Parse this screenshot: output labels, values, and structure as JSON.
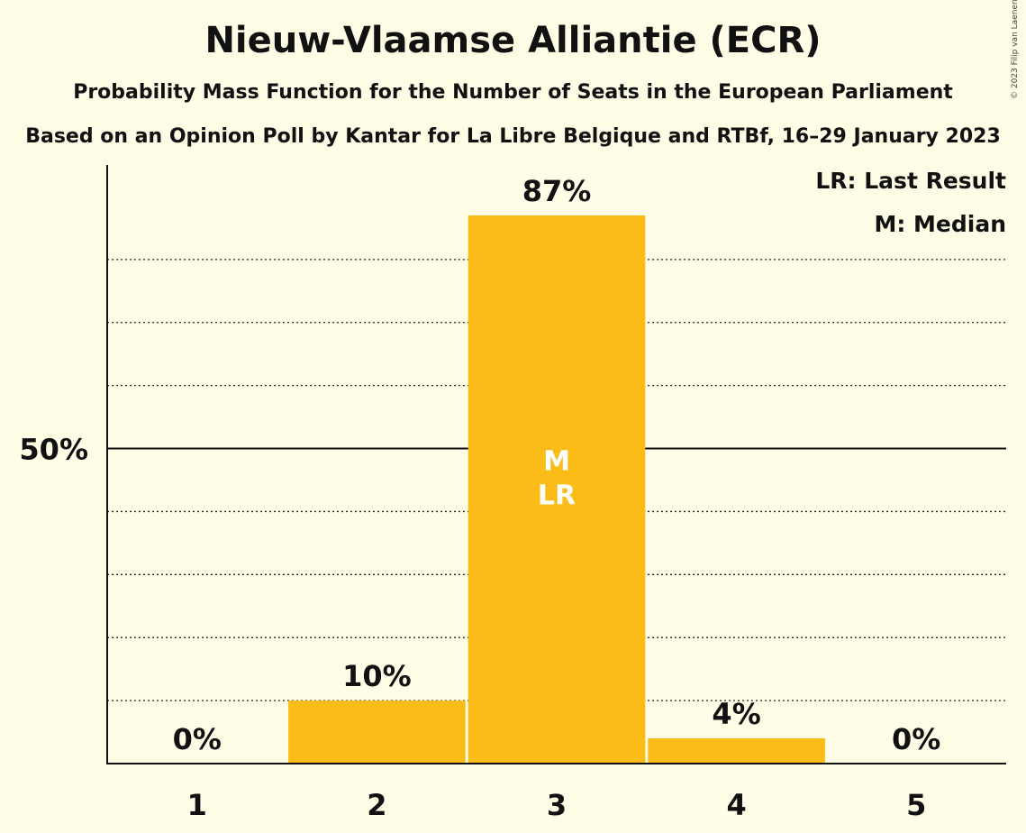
{
  "header": {
    "title": "Nieuw-Vlaamse Alliantie (ECR)",
    "subtitle": "Probability Mass Function for the Number of Seats in the European Parliament",
    "subtitle2": "Based on an Opinion Poll by Kantar for La Libre Belgique and RTBf, 16–29 January 2023",
    "copyright": "© 2023 Filip van Laenen"
  },
  "legend": {
    "last_result": "LR: Last Result",
    "median": "M: Median"
  },
  "colors": {
    "background": "#fffde6",
    "bar": "#fbbc18",
    "axis": "#111111"
  },
  "chart_data": {
    "type": "bar",
    "title": "Nieuw-Vlaamse Alliantie (ECR)",
    "xlabel": "",
    "ylabel": "",
    "categories": [
      "1",
      "2",
      "3",
      "4",
      "5"
    ],
    "values": [
      0,
      10,
      87,
      4,
      0
    ],
    "value_labels": [
      "0%",
      "10%",
      "87%",
      "4%",
      "0%"
    ],
    "ylim": [
      0,
      95
    ],
    "y_ticks": [
      {
        "value": 50,
        "label": "50%"
      }
    ],
    "gridlines_dotted": [
      10,
      20,
      30,
      40,
      60,
      70,
      80
    ],
    "gridline_solid": 50,
    "median_seat": "3",
    "last_result_seat": "3",
    "median_marker": "M",
    "last_result_marker": "LR",
    "legend_position": "top-right"
  }
}
